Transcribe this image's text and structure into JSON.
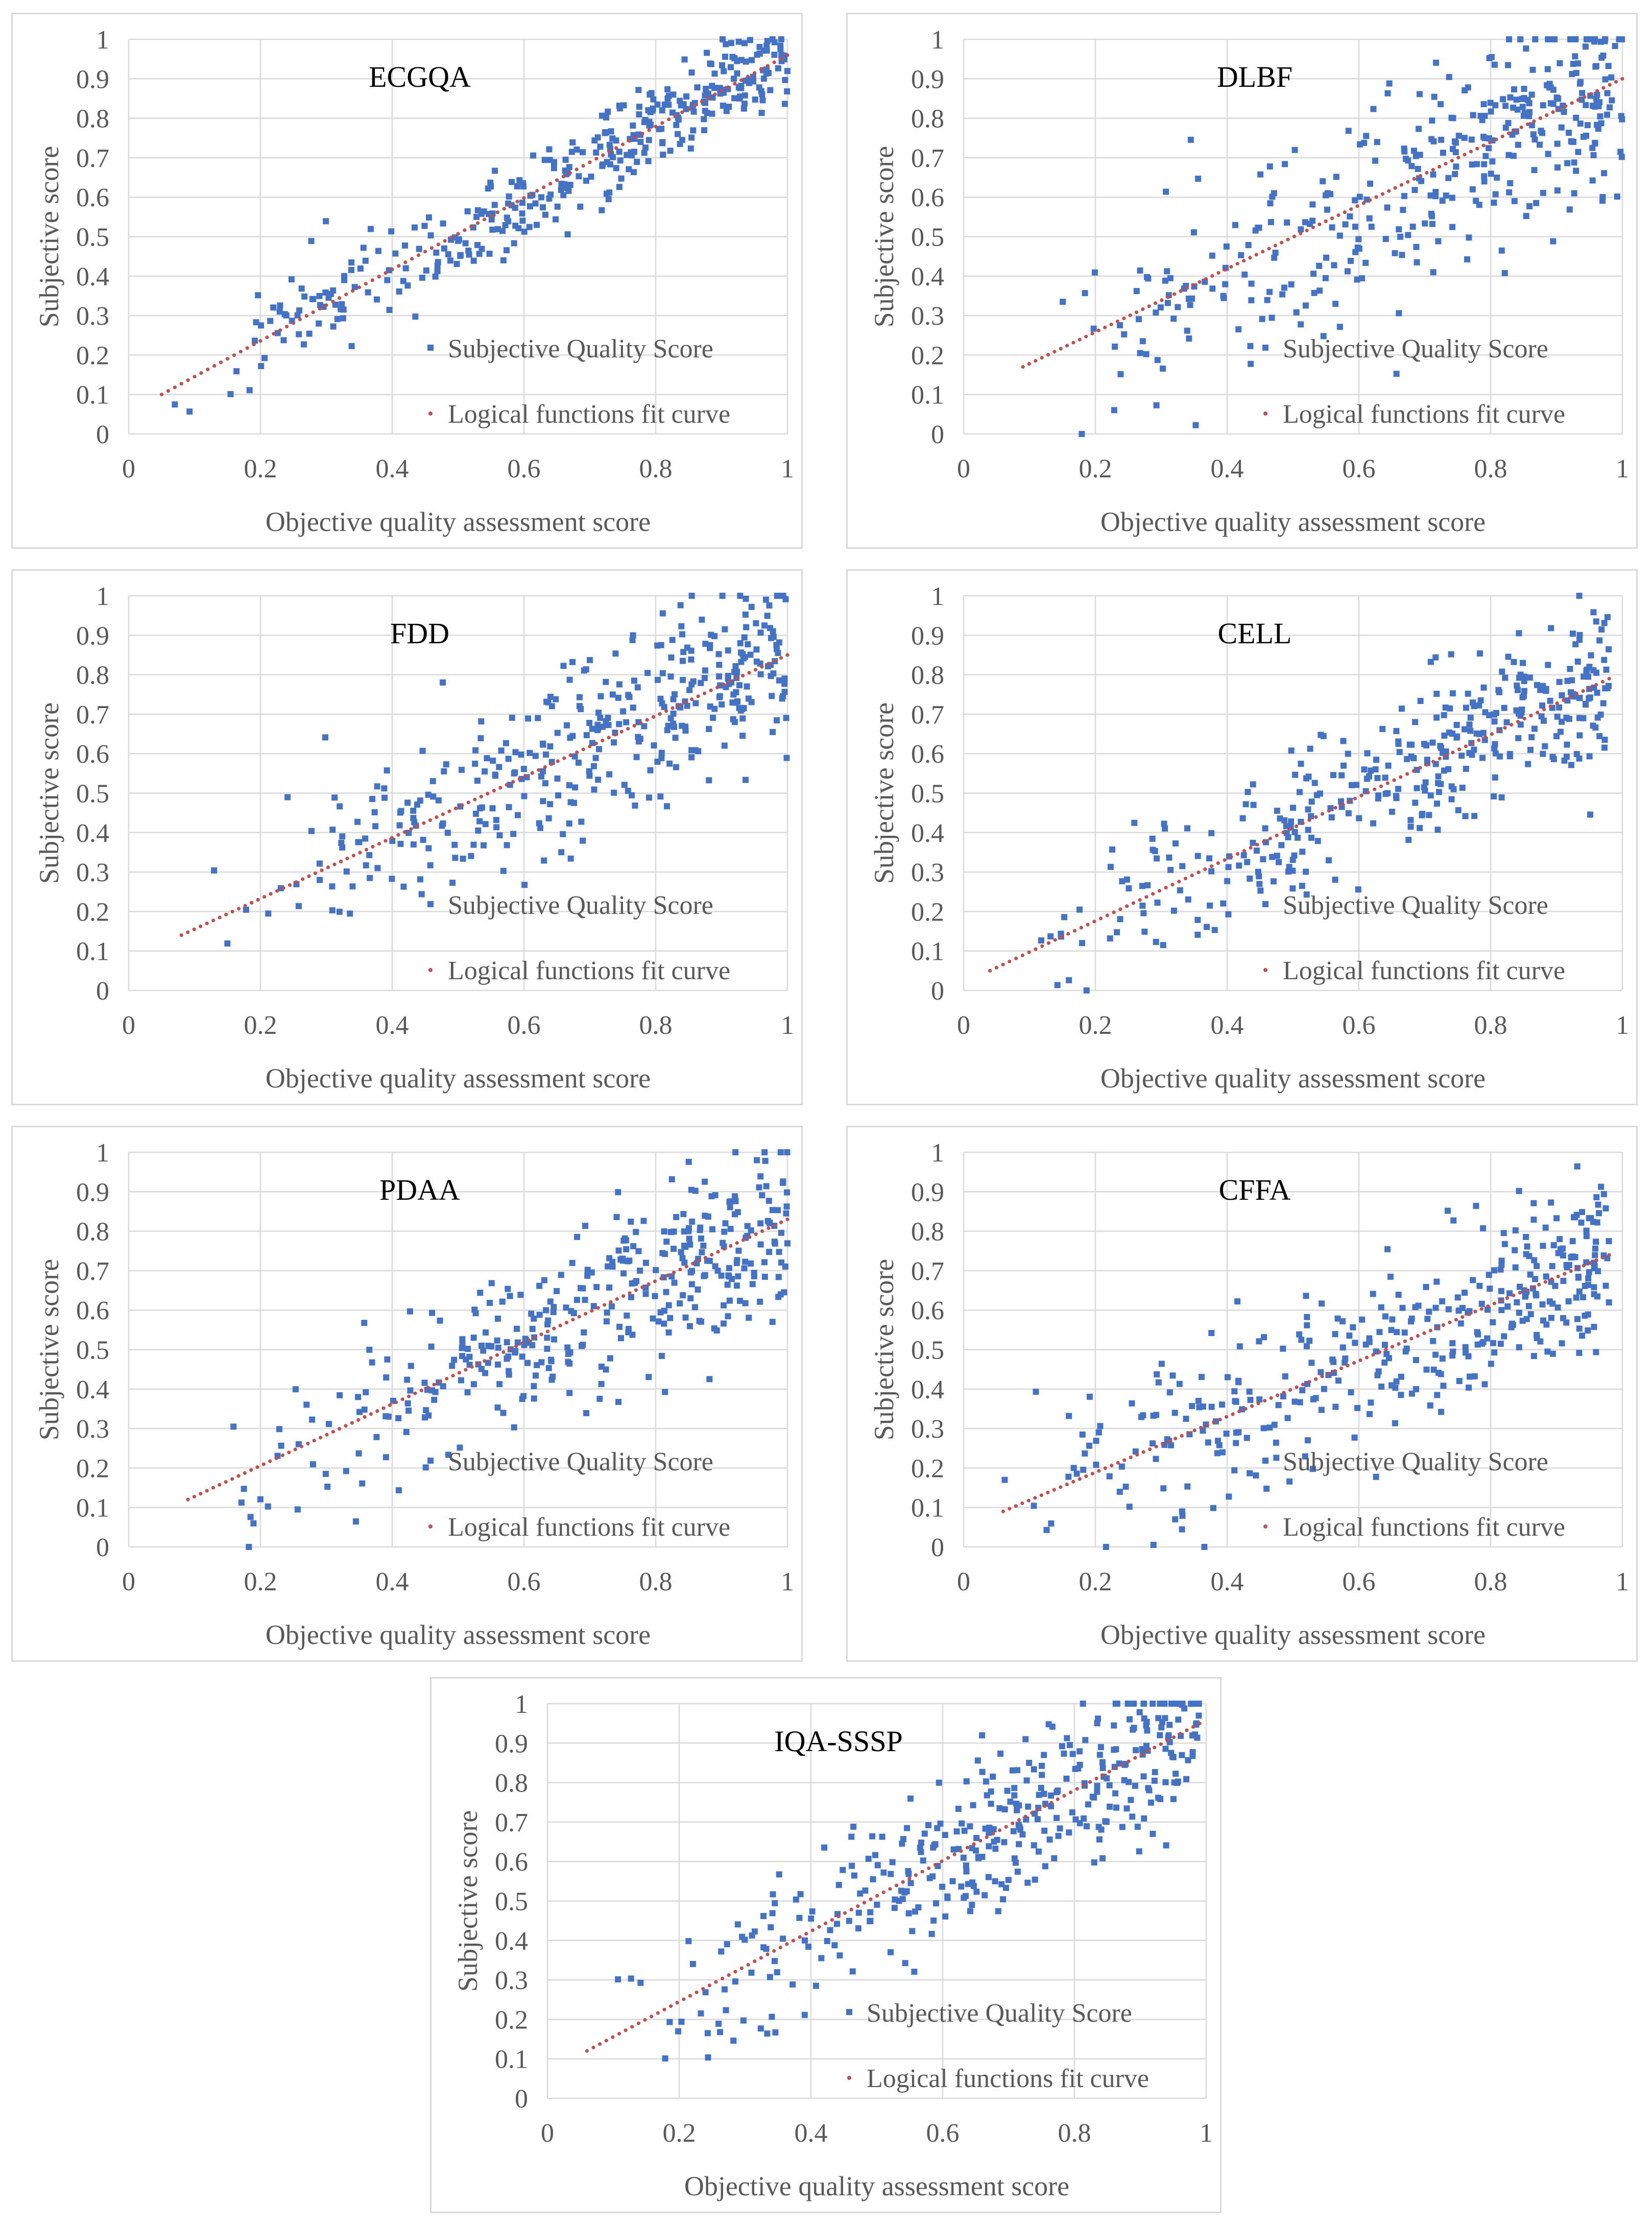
{
  "colors": {
    "points": "#4472c4",
    "fit": "#c0504d",
    "grid": "#d9d9d9",
    "text": "#595959"
  },
  "chart_data": [
    {
      "id": "p0",
      "type": "scatter",
      "title": "ECGQA",
      "xlabel": "Objective quality assessment score",
      "ylabel": "Subjective score",
      "xlim": [
        0,
        1
      ],
      "ylim": [
        0,
        1
      ],
      "xticks": [
        "0",
        "0.2",
        "0.4",
        "0.6",
        "0.8",
        "1"
      ],
      "yticks": [
        "0",
        "0.1",
        "0.2",
        "0.3",
        "0.4",
        "0.5",
        "0.6",
        "0.7",
        "0.8",
        "0.9",
        "1"
      ],
      "legend": [
        "Subjective Quality Score",
        "Logical functions fit curve"
      ],
      "legend_position": "bottom-right",
      "xrange": [
        0.05,
        1.0
      ],
      "fit": [
        0.1,
        0.96
      ],
      "noise": 0.06,
      "n": 380,
      "seed": 11
    },
    {
      "id": "p1",
      "type": "scatter",
      "title": "DLBF",
      "xlabel": "Objective quality assessment score",
      "ylabel": "Subjective score",
      "xlim": [
        0,
        1
      ],
      "ylim": [
        0,
        1
      ],
      "xticks": [
        "0",
        "0.2",
        "0.4",
        "0.6",
        "0.8",
        "1"
      ],
      "yticks": [
        "0",
        "0.1",
        "0.2",
        "0.3",
        "0.4",
        "0.5",
        "0.6",
        "0.7",
        "0.8",
        "0.9",
        "1"
      ],
      "legend": [
        "Subjective Quality Score",
        "Logical functions fit curve"
      ],
      "legend_position": "bottom-right",
      "xrange": [
        0.09,
        1.0
      ],
      "fit": [
        0.17,
        0.9
      ],
      "noise": 0.13,
      "n": 380,
      "seed": 23
    },
    {
      "id": "p2",
      "type": "scatter",
      "title": "FDD",
      "xlabel": "Objective quality assessment score",
      "ylabel": "Subjective score",
      "xlim": [
        0,
        1
      ],
      "ylim": [
        0,
        1
      ],
      "xticks": [
        "0",
        "0.2",
        "0.4",
        "0.6",
        "0.8",
        "1"
      ],
      "yticks": [
        "0",
        "0.1",
        "0.2",
        "0.3",
        "0.4",
        "0.5",
        "0.6",
        "0.7",
        "0.8",
        "0.9",
        "1"
      ],
      "legend": [
        "Subjective Quality Score",
        "Logical functions fit curve"
      ],
      "legend_position": "bottom-right",
      "xrange": [
        0.08,
        1.0
      ],
      "fit": [
        0.14,
        0.85
      ],
      "noise": 0.11,
      "n": 380,
      "seed": 37
    },
    {
      "id": "p3",
      "type": "scatter",
      "title": "CELL",
      "xlabel": "Objective quality assessment score",
      "ylabel": "Subjective score",
      "xlim": [
        0,
        1
      ],
      "ylim": [
        0,
        1
      ],
      "xticks": [
        "0",
        "0.2",
        "0.4",
        "0.6",
        "0.8",
        "1"
      ],
      "yticks": [
        "0",
        "0.1",
        "0.2",
        "0.3",
        "0.4",
        "0.5",
        "0.6",
        "0.7",
        "0.8",
        "0.9",
        "1"
      ],
      "legend": [
        "Subjective Quality Score",
        "Logical functions fit curve"
      ],
      "legend_position": "bottom-right",
      "xrange": [
        0.04,
        0.98
      ],
      "fit": [
        0.05,
        0.79
      ],
      "noise": 0.1,
      "n": 380,
      "seed": 41
    },
    {
      "id": "p4",
      "type": "scatter",
      "title": "PDAA",
      "xlabel": "Objective quality assessment score",
      "ylabel": "Subjective score",
      "xlim": [
        0,
        1
      ],
      "ylim": [
        0,
        1
      ],
      "xticks": [
        "0",
        "0.2",
        "0.4",
        "0.6",
        "0.8",
        "1"
      ],
      "yticks": [
        "0",
        "0.1",
        "0.2",
        "0.3",
        "0.4",
        "0.5",
        "0.6",
        "0.7",
        "0.8",
        "0.9",
        "1"
      ],
      "legend": [
        "Subjective Quality Score",
        "Logical functions fit curve"
      ],
      "legend_position": "bottom-right",
      "xrange": [
        0.09,
        1.0
      ],
      "fit": [
        0.12,
        0.83
      ],
      "noise": 0.11,
      "n": 380,
      "seed": 53
    },
    {
      "id": "p5",
      "type": "scatter",
      "title": "CFFA",
      "xlabel": "Objective quality assessment score",
      "ylabel": "Subjective score",
      "xlim": [
        0,
        1
      ],
      "ylim": [
        0,
        1
      ],
      "xticks": [
        "0",
        "0.2",
        "0.4",
        "0.6",
        "0.8",
        "1"
      ],
      "yticks": [
        "0",
        "0.1",
        "0.2",
        "0.3",
        "0.4",
        "0.5",
        "0.6",
        "0.7",
        "0.8",
        "0.9",
        "1"
      ],
      "legend": [
        "Subjective Quality Score",
        "Logical functions fit curve"
      ],
      "legend_position": "bottom-right",
      "xrange": [
        0.06,
        0.98
      ],
      "fit": [
        0.09,
        0.74
      ],
      "noise": 0.1,
      "n": 380,
      "seed": 67
    },
    {
      "id": "p6",
      "type": "scatter",
      "title": "IQA-SSSP",
      "xlabel": "Objective quality assessment score",
      "ylabel": "Subjective score",
      "xlim": [
        0,
        1
      ],
      "ylim": [
        0,
        1
      ],
      "xticks": [
        "0",
        "0.2",
        "0.4",
        "0.6",
        "0.8",
        "1"
      ],
      "yticks": [
        "0",
        "0.1",
        "0.2",
        "0.3",
        "0.4",
        "0.5",
        "0.6",
        "0.7",
        "0.8",
        "0.9",
        "1"
      ],
      "legend": [
        "Subjective Quality Score",
        "Logical functions fit curve"
      ],
      "legend_position": "bottom-right",
      "xrange": [
        0.06,
        0.99
      ],
      "fit": [
        0.12,
        0.95
      ],
      "noise": 0.1,
      "n": 380,
      "seed": 79
    }
  ]
}
